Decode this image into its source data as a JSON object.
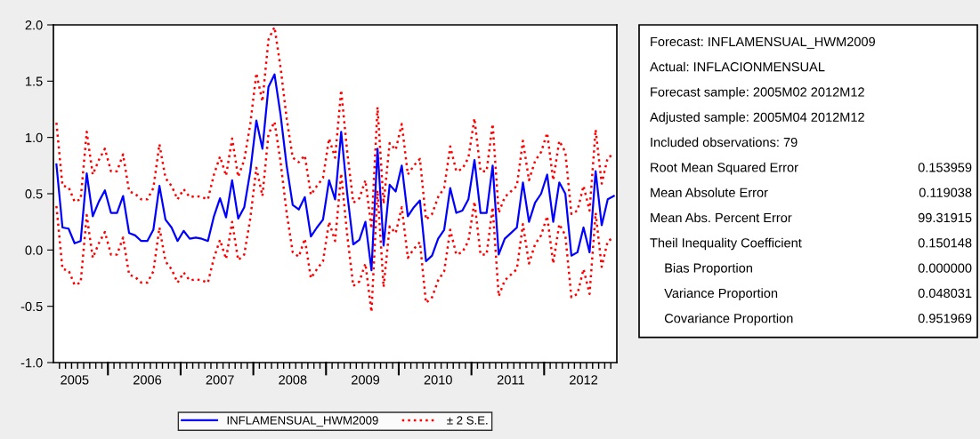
{
  "chart_data": {
    "type": "line",
    "categories": [
      null,
      null,
      null,
      "2005",
      null,
      null,
      null,
      null,
      null,
      null,
      null,
      null,
      null,
      null,
      null,
      "2006",
      null,
      null,
      null,
      null,
      null,
      null,
      null,
      null,
      null,
      null,
      null,
      "2007",
      null,
      null,
      null,
      null,
      null,
      null,
      null,
      null,
      null,
      null,
      null,
      "2008",
      null,
      null,
      null,
      null,
      null,
      null,
      null,
      null,
      null,
      null,
      null,
      "2009",
      null,
      null,
      null,
      null,
      null,
      null,
      null,
      null,
      null,
      null,
      null,
      "2010",
      null,
      null,
      null,
      null,
      null,
      null,
      null,
      null,
      null,
      null,
      null,
      "2011",
      null,
      null,
      null,
      null,
      null,
      null,
      null,
      null,
      null,
      null,
      null,
      "2012",
      null,
      null,
      null,
      null,
      null
    ],
    "series": [
      {
        "name": "INFLAMENSUAL_HWM2009",
        "color": "#0000ff",
        "line_style": "solid",
        "values": [
          0.76,
          0.2,
          0.19,
          0.06,
          0.08,
          0.68,
          0.3,
          0.43,
          0.53,
          0.33,
          0.33,
          0.48,
          0.15,
          0.13,
          0.08,
          0.08,
          0.18,
          0.57,
          0.27,
          0.2,
          0.08,
          0.17,
          0.1,
          0.11,
          0.1,
          0.08,
          0.3,
          0.46,
          0.29,
          0.62,
          0.28,
          0.38,
          0.7,
          1.15,
          0.9,
          1.45,
          1.56,
          1.2,
          0.75,
          0.4,
          0.36,
          0.47,
          0.12,
          0.2,
          0.27,
          0.62,
          0.45,
          1.05,
          0.5,
          0.05,
          0.09,
          0.25,
          -0.18,
          0.9,
          0.04,
          0.58,
          0.52,
          0.75,
          0.3,
          0.38,
          0.44,
          -0.1,
          -0.05,
          0.1,
          0.18,
          0.55,
          0.33,
          0.35,
          0.45,
          0.8,
          0.33,
          0.33,
          0.75,
          -0.04,
          0.1,
          0.15,
          0.2,
          0.6,
          0.25,
          0.42,
          0.5,
          0.67,
          0.25,
          0.6,
          0.5,
          -0.05,
          -0.02,
          0.2,
          -0.02,
          0.7,
          0.22,
          0.45,
          0.48
        ]
      },
      {
        "name": "± 2 S.E.",
        "color": "#ff0000",
        "line_style": "dotted",
        "values": [
          1.13,
          0.57,
          0.56,
          0.43,
          0.45,
          1.05,
          0.67,
          0.8,
          0.9,
          0.7,
          0.7,
          0.85,
          0.52,
          0.5,
          0.45,
          0.45,
          0.55,
          0.94,
          0.64,
          0.57,
          0.45,
          0.54,
          0.47,
          0.48,
          0.47,
          0.45,
          0.67,
          0.83,
          0.66,
          0.99,
          0.65,
          0.8,
          1.12,
          1.57,
          1.32,
          1.87,
          1.98,
          1.62,
          1.17,
          0.82,
          0.78,
          0.84,
          0.49,
          0.57,
          0.64,
          0.99,
          0.82,
          1.42,
          0.87,
          0.42,
          0.46,
          0.62,
          0.19,
          1.27,
          0.41,
          0.95,
          0.89,
          1.12,
          0.67,
          0.75,
          0.81,
          0.27,
          0.32,
          0.47,
          0.55,
          0.92,
          0.7,
          0.72,
          0.82,
          1.17,
          0.7,
          0.7,
          1.12,
          0.33,
          0.47,
          0.52,
          0.57,
          0.97,
          0.62,
          0.79,
          0.87,
          1.04,
          0.62,
          0.97,
          0.87,
          0.32,
          0.35,
          0.57,
          0.35,
          1.07,
          0.59,
          0.82,
          0.85
        ]
      },
      {
        "color": "#ff0000",
        "line_style": "dotted",
        "values": [
          0.39,
          -0.17,
          -0.18,
          -0.31,
          -0.29,
          0.31,
          -0.07,
          0.06,
          0.16,
          -0.04,
          -0.04,
          0.11,
          -0.22,
          -0.24,
          -0.29,
          -0.29,
          -0.19,
          0.2,
          -0.1,
          -0.17,
          -0.29,
          -0.2,
          -0.27,
          -0.26,
          -0.27,
          -0.29,
          -0.07,
          0.09,
          -0.08,
          0.25,
          -0.09,
          -0.04,
          0.28,
          0.73,
          0.48,
          1.03,
          1.14,
          0.78,
          0.33,
          -0.02,
          -0.06,
          0.1,
          -0.25,
          -0.17,
          -0.1,
          0.25,
          0.08,
          0.68,
          0.13,
          -0.32,
          -0.28,
          -0.12,
          -0.55,
          0.53,
          -0.33,
          0.21,
          0.15,
          0.38,
          -0.07,
          0.01,
          0.07,
          -0.47,
          -0.42,
          -0.27,
          -0.19,
          0.18,
          -0.04,
          -0.02,
          0.08,
          0.43,
          -0.04,
          -0.04,
          0.38,
          -0.41,
          -0.27,
          -0.22,
          -0.17,
          0.23,
          -0.12,
          0.05,
          0.13,
          0.3,
          -0.12,
          0.23,
          0.13,
          -0.42,
          -0.39,
          -0.17,
          -0.39,
          0.33,
          -0.15,
          0.08,
          0.11
        ]
      }
    ],
    "ylim": [
      -1.0,
      2.0
    ],
    "yticks": [
      {
        "value": -1.0,
        "label": "-1.0"
      },
      {
        "value": -0.5,
        "label": "-0.5"
      },
      {
        "value": 0.0,
        "label": "0.0"
      },
      {
        "value": 0.5,
        "label": "0.5"
      },
      {
        "value": 1.0,
        "label": "1.0"
      },
      {
        "value": 1.5,
        "label": "1.5"
      },
      {
        "value": 2.0,
        "label": "2.0"
      }
    ],
    "grid": false,
    "legend": "bottom",
    "marker": "none",
    "annotations": [
      "Forecast: INFLAMENSUAL_HWM2009",
      "Actual: INFLACIONMENSUAL",
      "Forecast sample: 2005M02 2012M12",
      "Adjusted sample: 2005M04 2012M12",
      "Included observations: 79",
      "Root Mean Squared Error\t0.153959",
      "Mean Absolute Error\t0.119038",
      "Mean Abs. Percent Error\t99.31915",
      "Theil Inequality Coefficient\t0.150148",
      "    Bias Proportion\t0.000000",
      "    Variance Proportion\t0.048031",
      "    Covariance Proportion\t0.951969"
    ]
  }
}
